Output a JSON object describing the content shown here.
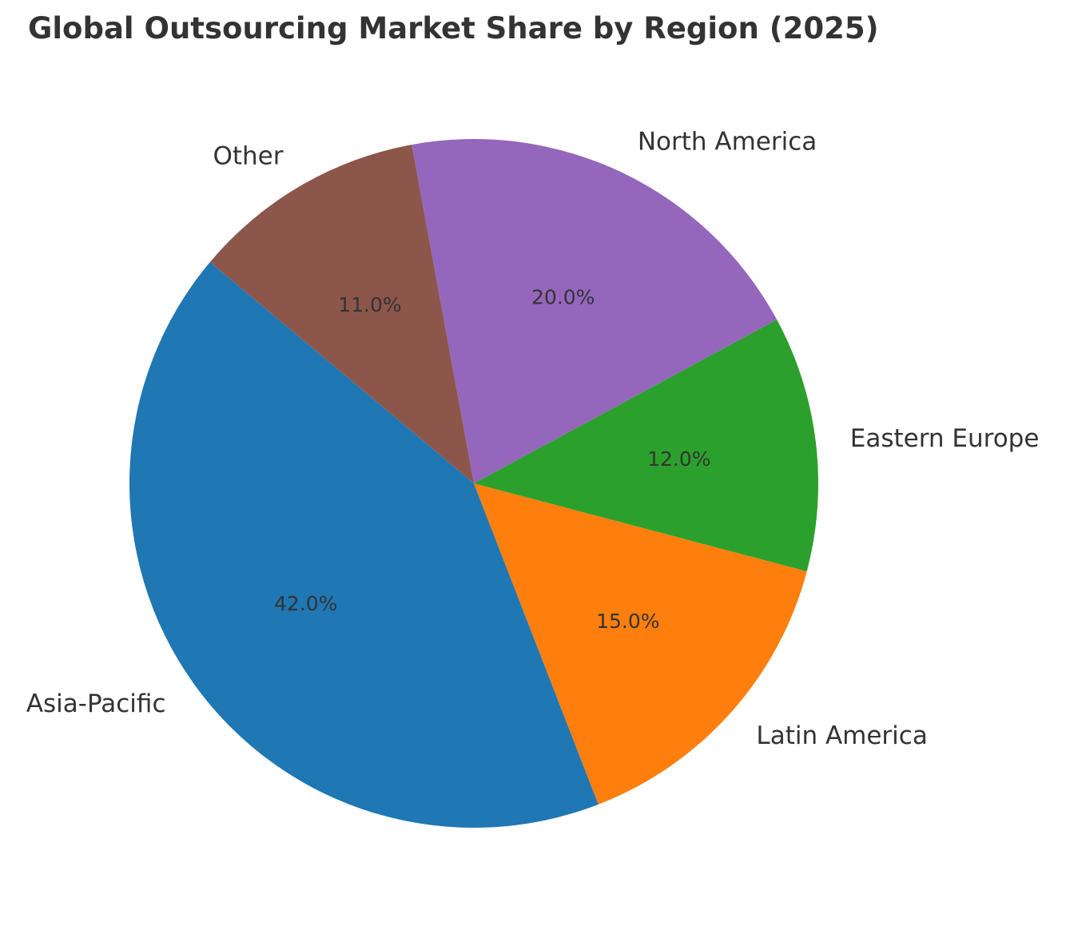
{
  "chart_data": {
    "type": "pie",
    "title": "Global Outsourcing Market Share by Region (2025)",
    "categories": [
      "Asia-Pacific",
      "Latin America",
      "Eastern Europe",
      "North America",
      "Other"
    ],
    "values": [
      42.0,
      15.0,
      12.0,
      20.0,
      11.0
    ],
    "value_labels": [
      "42.0%",
      "15.0%",
      "12.0%",
      "20.0%",
      "11.0%"
    ],
    "colors": [
      "#1f77b4",
      "#ff7f0e",
      "#2ca02c",
      "#9467bd",
      "#8c564b"
    ],
    "start_angle_deg": 140,
    "direction": "counterclockwise"
  }
}
